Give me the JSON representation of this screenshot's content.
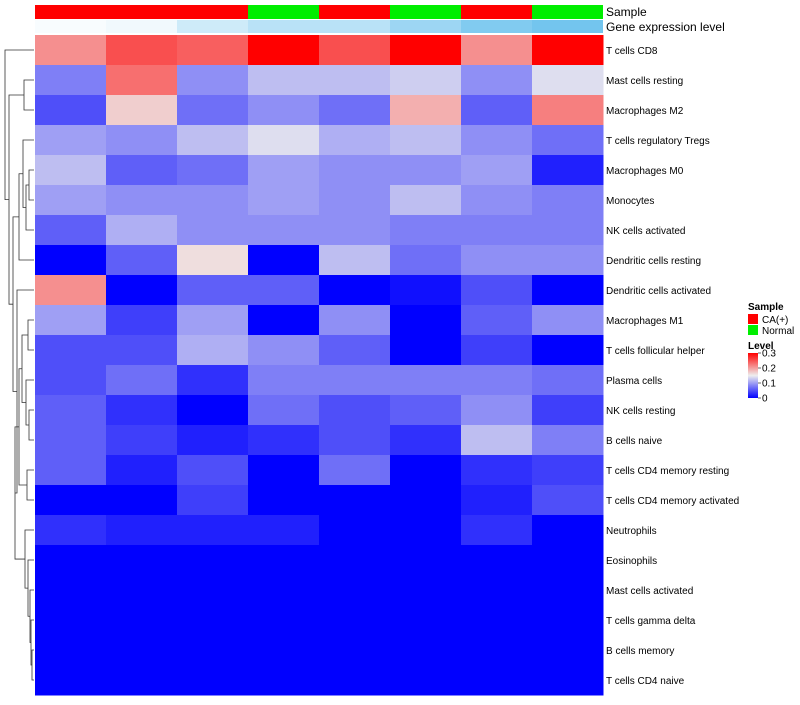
{
  "chart_data": {
    "type": "heatmap",
    "title": "",
    "annotation_rows": [
      {
        "name": "Sample",
        "type": "categorical",
        "values": [
          "CA(+)",
          "CA(+)",
          "CA(+)",
          "Normal",
          "CA(+)",
          "Normal",
          "CA(+)",
          "Normal"
        ]
      },
      {
        "name": "Gene expression level",
        "type": "continuous",
        "values": [
          0.05,
          0.1,
          0.35,
          0.5,
          0.5,
          0.7,
          0.9,
          1.0
        ]
      }
    ],
    "rows": [
      "T cells CD8",
      "Mast cells resting",
      "Macrophages M2",
      "T cells regulatory  Tregs",
      "Macrophages M0",
      "Monocytes",
      "NK cells activated",
      "Dendritic cells resting",
      "Dendritic cells activated",
      "Macrophages M1",
      "T cells follicular helper",
      "Plasma cells",
      "NK cells resting",
      "B cells naive",
      "T cells CD4 memory resting",
      "T cells CD4 memory activated",
      "Neutrophils",
      "Eosinophils",
      "Mast cells activated",
      "T cells gamma delta",
      "B cells memory",
      "T cells CD4 naive"
    ],
    "values": [
      [
        0.21,
        0.25,
        0.24,
        0.3,
        0.25,
        0.3,
        0.21,
        0.3
      ],
      [
        0.08,
        0.23,
        0.09,
        0.12,
        0.12,
        0.13,
        0.09,
        0.14
      ],
      [
        0.05,
        0.17,
        0.07,
        0.09,
        0.07,
        0.19,
        0.06,
        0.22
      ],
      [
        0.1,
        0.09,
        0.12,
        0.14,
        0.11,
        0.12,
        0.09,
        0.07
      ],
      [
        0.12,
        0.06,
        0.07,
        0.1,
        0.09,
        0.09,
        0.1,
        0.02
      ],
      [
        0.1,
        0.09,
        0.09,
        0.1,
        0.09,
        0.12,
        0.09,
        0.08
      ],
      [
        0.06,
        0.11,
        0.09,
        0.09,
        0.09,
        0.08,
        0.08,
        0.08
      ],
      [
        0.0,
        0.06,
        0.16,
        0.0,
        0.12,
        0.07,
        0.09,
        0.09
      ],
      [
        0.21,
        0.0,
        0.06,
        0.06,
        0.0,
        0.01,
        0.05,
        0.0
      ],
      [
        0.1,
        0.04,
        0.1,
        0.0,
        0.09,
        0.0,
        0.06,
        0.09
      ],
      [
        0.05,
        0.05,
        0.11,
        0.09,
        0.06,
        0.0,
        0.04,
        0.0
      ],
      [
        0.05,
        0.07,
        0.03,
        0.08,
        0.08,
        0.08,
        0.08,
        0.07
      ],
      [
        0.06,
        0.03,
        0.0,
        0.07,
        0.05,
        0.06,
        0.09,
        0.04
      ],
      [
        0.06,
        0.04,
        0.02,
        0.03,
        0.05,
        0.03,
        0.12,
        0.08
      ],
      [
        0.06,
        0.02,
        0.05,
        0.0,
        0.07,
        0.0,
        0.03,
        0.04
      ],
      [
        0.0,
        0.0,
        0.04,
        0.0,
        0.0,
        0.0,
        0.02,
        0.05
      ],
      [
        0.03,
        0.02,
        0.02,
        0.02,
        0.0,
        0.0,
        0.03,
        0.0
      ],
      [
        0.0,
        0.0,
        0.0,
        0.0,
        0.0,
        0.0,
        0.0,
        0.0
      ],
      [
        0.0,
        0.0,
        0.0,
        0.0,
        0.0,
        0.0,
        0.0,
        0.0
      ],
      [
        0.0,
        0.0,
        0.0,
        0.0,
        0.0,
        0.0,
        0.0,
        0.0
      ],
      [
        0.0,
        0.0,
        0.0,
        0.0,
        0.0,
        0.0,
        0.0,
        0.0
      ],
      [
        0.0,
        0.0,
        0.0,
        0.0,
        0.0,
        0.0,
        0.0,
        0.0
      ]
    ],
    "color_scale": {
      "min": 0,
      "max": 0.3,
      "low": "#0000ff",
      "mid": "#eeeeee",
      "high": "#ff0000"
    },
    "row_dendrogram": true,
    "legend": {
      "position": "right",
      "sample_title": "Sample",
      "sample_entries": [
        {
          "label": "CA(+)",
          "color": "#ff0000"
        },
        {
          "label": "Normal",
          "color": "#00ee00"
        }
      ],
      "level_title": "Level",
      "level_ticks": [
        "0.3",
        "0.2",
        "0.1",
        "0"
      ],
      "level_tick_values": [
        0.3,
        0.2,
        0.1,
        0
      ]
    },
    "gene_expression_colors": {
      "low": "#ffffff",
      "high": "#73c5ee"
    }
  }
}
